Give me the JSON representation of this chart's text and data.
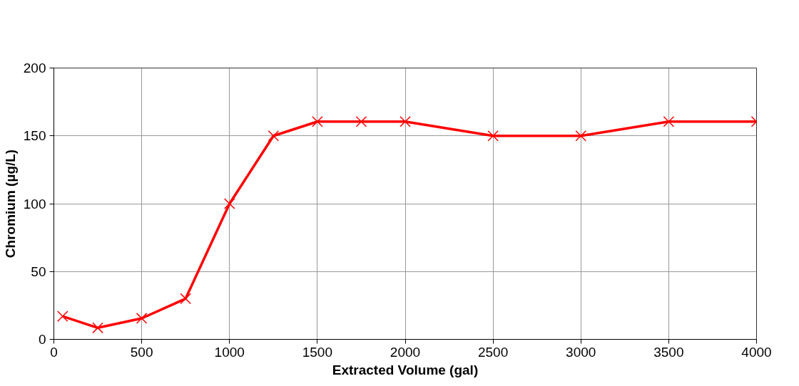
{
  "chart_data": {
    "type": "line",
    "xlabel": "Extracted Volume (gal)",
    "ylabel": "Chromium (µg/L)",
    "x": [
      50,
      250,
      500,
      750,
      1000,
      1250,
      1500,
      1750,
      2000,
      2500,
      3000,
      3500,
      4000
    ],
    "series": [
      {
        "color": "#ff0000",
        "values": [
          17,
          8.5,
          15.5,
          30,
          100,
          150,
          160.5,
          160.5,
          160.5,
          150,
          150,
          160.5,
          160.5
        ]
      }
    ],
    "xlim": [
      0,
      4000
    ],
    "xticks": [
      0,
      500,
      1000,
      1500,
      2000,
      2500,
      3000,
      3500,
      4000
    ],
    "ylim": [
      0,
      200
    ],
    "yticks": [
      0,
      50,
      100,
      150,
      200
    ],
    "grid": true,
    "marker": "cross",
    "line_style": "solid"
  }
}
